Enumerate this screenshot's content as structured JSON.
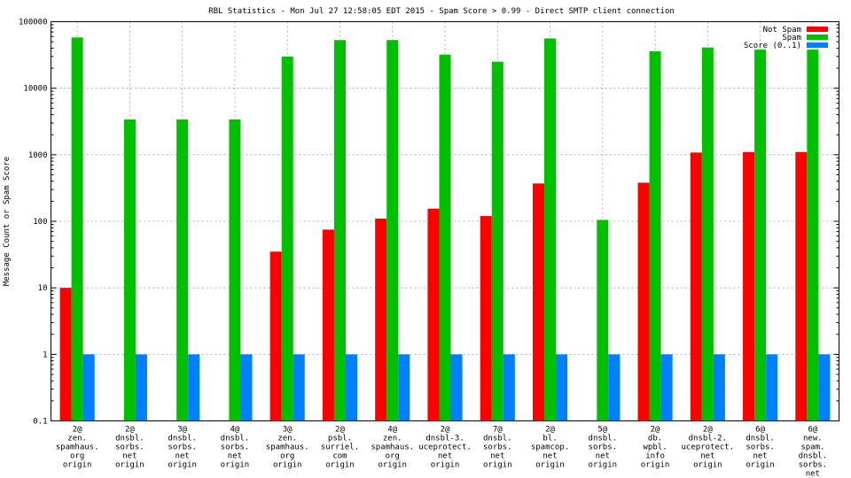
{
  "chart_data": {
    "type": "bar",
    "title": "RBL Statistics - Mon Jul 27 12:58:05 EDT 2015 - Spam Score > 0.99 - Direct SMTP client connection",
    "ylabel": "Message Count or Spam Score",
    "yscale": "log",
    "ylim": [
      0.1,
      100000
    ],
    "yticks": [
      "0.1",
      "1",
      "10",
      "100",
      "1000",
      "10000",
      "100000"
    ],
    "grid": true,
    "legend_position": "top-right",
    "categories": [
      [
        "2@",
        "zen.",
        "spamhaus.",
        "org",
        "origin"
      ],
      [
        "2@",
        "dnsbl.",
        "sorbs.",
        "net",
        "origin"
      ],
      [
        "3@",
        "dnsbl.",
        "sorbs.",
        "net",
        "origin"
      ],
      [
        "4@",
        "dnsbl.",
        "sorbs.",
        "net",
        "origin"
      ],
      [
        "3@",
        "zen.",
        "spamhaus.",
        "org",
        "origin"
      ],
      [
        "2@",
        "psbl.",
        "surriel.",
        "com",
        "origin"
      ],
      [
        "4@",
        "zen.",
        "spamhaus.",
        "org",
        "origin"
      ],
      [
        "2@",
        "dnsbl-3.",
        "uceprotect.",
        "net",
        "origin"
      ],
      [
        "7@",
        "dnsbl.",
        "sorbs.",
        "net",
        "origin"
      ],
      [
        "2@",
        "bl.",
        "spamcop.",
        "net",
        "origin"
      ],
      [
        "5@",
        "dnsbl.",
        "sorbs.",
        "net",
        "origin"
      ],
      [
        "2@",
        "db.",
        "wpbl.",
        "info",
        "origin"
      ],
      [
        "2@",
        "dnsbl-2.",
        "uceprotect.",
        "net",
        "origin"
      ],
      [
        "6@",
        "dnsbl.",
        "sorbs.",
        "net",
        "origin"
      ],
      [
        "6@",
        "new.",
        "spam.",
        "dnsbl.",
        "sorbs.",
        "net",
        "origin"
      ]
    ],
    "series": [
      {
        "name": "Not Spam",
        "color": "#ff0000",
        "values": [
          10,
          null,
          null,
          null,
          35,
          75,
          110,
          155,
          120,
          370,
          null,
          380,
          1080,
          1100,
          1100
        ]
      },
      {
        "name": "Spam",
        "color": "#00c000",
        "values": [
          58000,
          3400,
          3400,
          3400,
          30000,
          53000,
          53000,
          32000,
          25000,
          56000,
          105,
          36000,
          41000,
          38000,
          38000
        ]
      },
      {
        "name": "Score (0..1)",
        "color": "#0080ff",
        "values": [
          1,
          1,
          1,
          1,
          1,
          1,
          1,
          1,
          1,
          1,
          1,
          1,
          1,
          1,
          1
        ]
      }
    ]
  }
}
